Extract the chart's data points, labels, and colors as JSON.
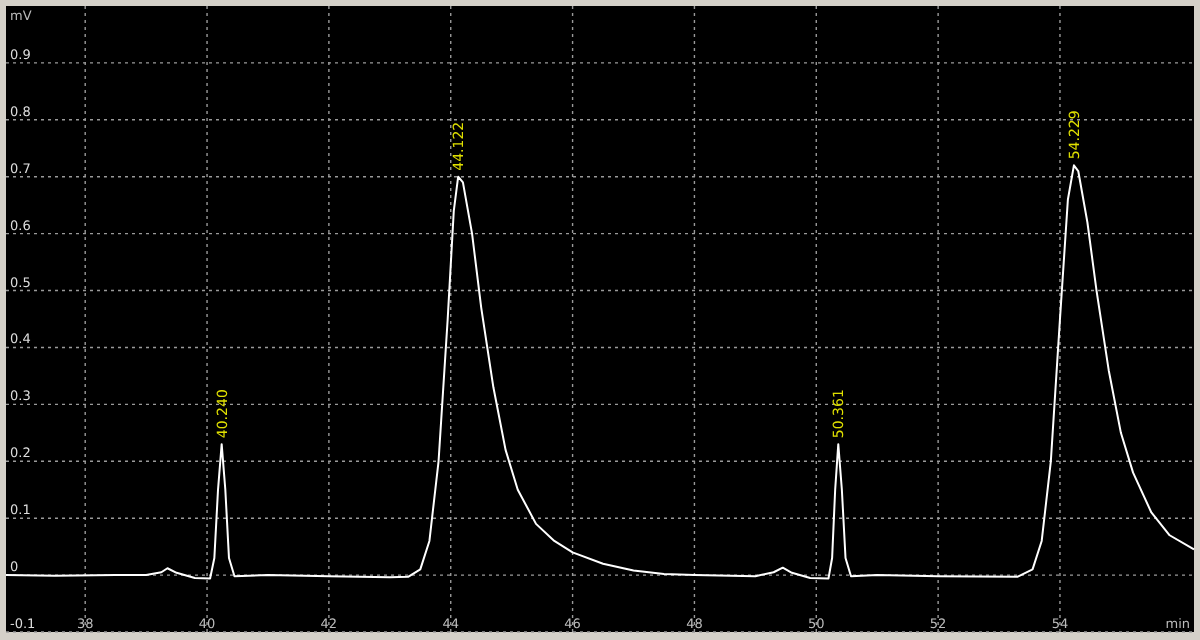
{
  "chart_data": {
    "type": "line",
    "xlabel": "min",
    "ylabel": "mV",
    "xlim": [
      36.7,
      56.2
    ],
    "ylim": [
      -0.1,
      1.0
    ],
    "xticks": [
      38,
      40,
      42,
      44,
      46,
      48,
      50,
      52,
      54
    ],
    "yticks": [
      -0.1,
      0,
      0.1,
      0.2,
      0.3,
      0.4,
      0.5,
      0.6,
      0.7,
      0.8,
      0.9
    ],
    "grid": true,
    "marker": "none",
    "line_style": "solid",
    "series": [
      {
        "color": "#ffffff",
        "x": [
          36.7,
          37.5,
          38.5,
          39.0,
          39.25,
          39.35,
          39.5,
          39.8,
          40.05,
          40.12,
          40.18,
          40.24,
          40.3,
          40.36,
          40.45,
          41,
          42,
          43,
          43.3,
          43.5,
          43.65,
          43.8,
          43.95,
          44.05,
          44.122,
          44.2,
          44.35,
          44.5,
          44.7,
          44.9,
          45.1,
          45.4,
          45.7,
          46,
          46.5,
          47,
          47.5,
          48,
          49,
          49.3,
          49.45,
          49.6,
          49.9,
          50.2,
          50.26,
          50.31,
          50.361,
          50.42,
          50.48,
          50.57,
          51,
          52,
          53.3,
          53.55,
          53.7,
          53.85,
          54.0,
          54.13,
          54.229,
          54.3,
          54.45,
          54.6,
          54.8,
          55,
          55.2,
          55.5,
          55.8,
          56.2
        ],
        "values": [
          0,
          -0.001,
          0,
          0,
          0.005,
          0.012,
          0.004,
          -0.005,
          -0.006,
          0.03,
          0.15,
          0.23,
          0.15,
          0.03,
          -0.002,
          0,
          -0.002,
          -0.004,
          -0.003,
          0.01,
          0.06,
          0.2,
          0.45,
          0.64,
          0.7,
          0.69,
          0.6,
          0.47,
          0.33,
          0.22,
          0.15,
          0.09,
          0.06,
          0.04,
          0.02,
          0.008,
          0.002,
          0,
          -0.002,
          0.005,
          0.013,
          0.004,
          -0.005,
          -0.006,
          0.03,
          0.15,
          0.23,
          0.15,
          0.03,
          -0.002,
          0,
          -0.002,
          -0.003,
          0.01,
          0.06,
          0.2,
          0.45,
          0.66,
          0.72,
          0.71,
          0.62,
          0.5,
          0.36,
          0.25,
          0.18,
          0.11,
          0.07,
          0.045
        ]
      }
    ],
    "annotations": [
      {
        "text": "40.240",
        "x": 40.24,
        "y": 0.23
      },
      {
        "text": "44.122",
        "x": 44.122,
        "y": 0.7
      },
      {
        "text": "50.361",
        "x": 50.361,
        "y": 0.23
      },
      {
        "text": "54.229",
        "x": 54.229,
        "y": 0.72
      }
    ]
  }
}
